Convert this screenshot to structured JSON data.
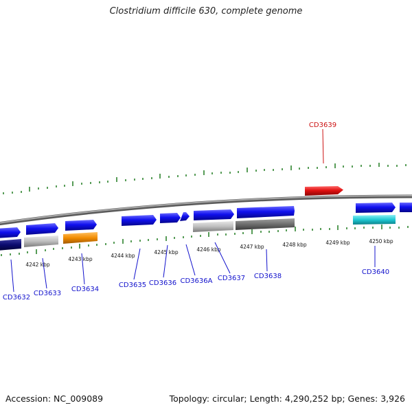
{
  "title": "Clostridium difficile 630, complete genome",
  "footer": {
    "accession_text": "Accession: NC_009089",
    "summary_text": "Topology: circular; Length: 4,290,252 bp; Genes: 3,926"
  },
  "colors": {
    "backbone": "#8c8c8c",
    "gene_blue": "#1010ee",
    "gene_red": "#e01010",
    "label_blue": "#1010cc",
    "label_red": "#cc1111",
    "tick_green": "#1f7a1f",
    "cds_light_gray": "#bdbdbd",
    "cds_dark_gray": "#6e6e6e",
    "cds_orange": "#f28c00",
    "cds_navy": "#0a0a6e",
    "cds_cyan": "#1ec8d2"
  },
  "ticks": {
    "labels": [
      "4242 kbp",
      "4243 kbp",
      "4244 kbp",
      "4245 kbp",
      "4246 kbp",
      "4247 kbp",
      "4248 kbp",
      "4249 kbp",
      "4250 kbp"
    ]
  },
  "genes": [
    {
      "name": "CD3632",
      "strand": "forward",
      "color": "blue"
    },
    {
      "name": "CD3633",
      "strand": "forward",
      "color": "blue"
    },
    {
      "name": "CD3634",
      "strand": "forward",
      "color": "blue"
    },
    {
      "name": "CD3635",
      "strand": "forward",
      "color": "blue"
    },
    {
      "name": "CD3636",
      "strand": "forward",
      "color": "blue"
    },
    {
      "name": "CD3636A",
      "strand": "forward",
      "color": "blue"
    },
    {
      "name": "CD3637",
      "strand": "forward",
      "color": "blue"
    },
    {
      "name": "CD3638",
      "strand": "forward",
      "color": "blue"
    },
    {
      "name": "CD3639",
      "strand": "reverse",
      "color": "red"
    },
    {
      "name": "CD3640",
      "strand": "forward",
      "color": "blue"
    }
  ],
  "cds_features": [
    {
      "gene": "CD3632",
      "color": "navy"
    },
    {
      "gene": "CD3633",
      "color": "light-gray"
    },
    {
      "gene": "CD3634",
      "color": "orange"
    },
    {
      "gene": "CD3637",
      "color": "light-gray"
    },
    {
      "gene": "CD3638",
      "color": "dark-gray"
    },
    {
      "gene": "CD3640",
      "color": "cyan"
    }
  ]
}
